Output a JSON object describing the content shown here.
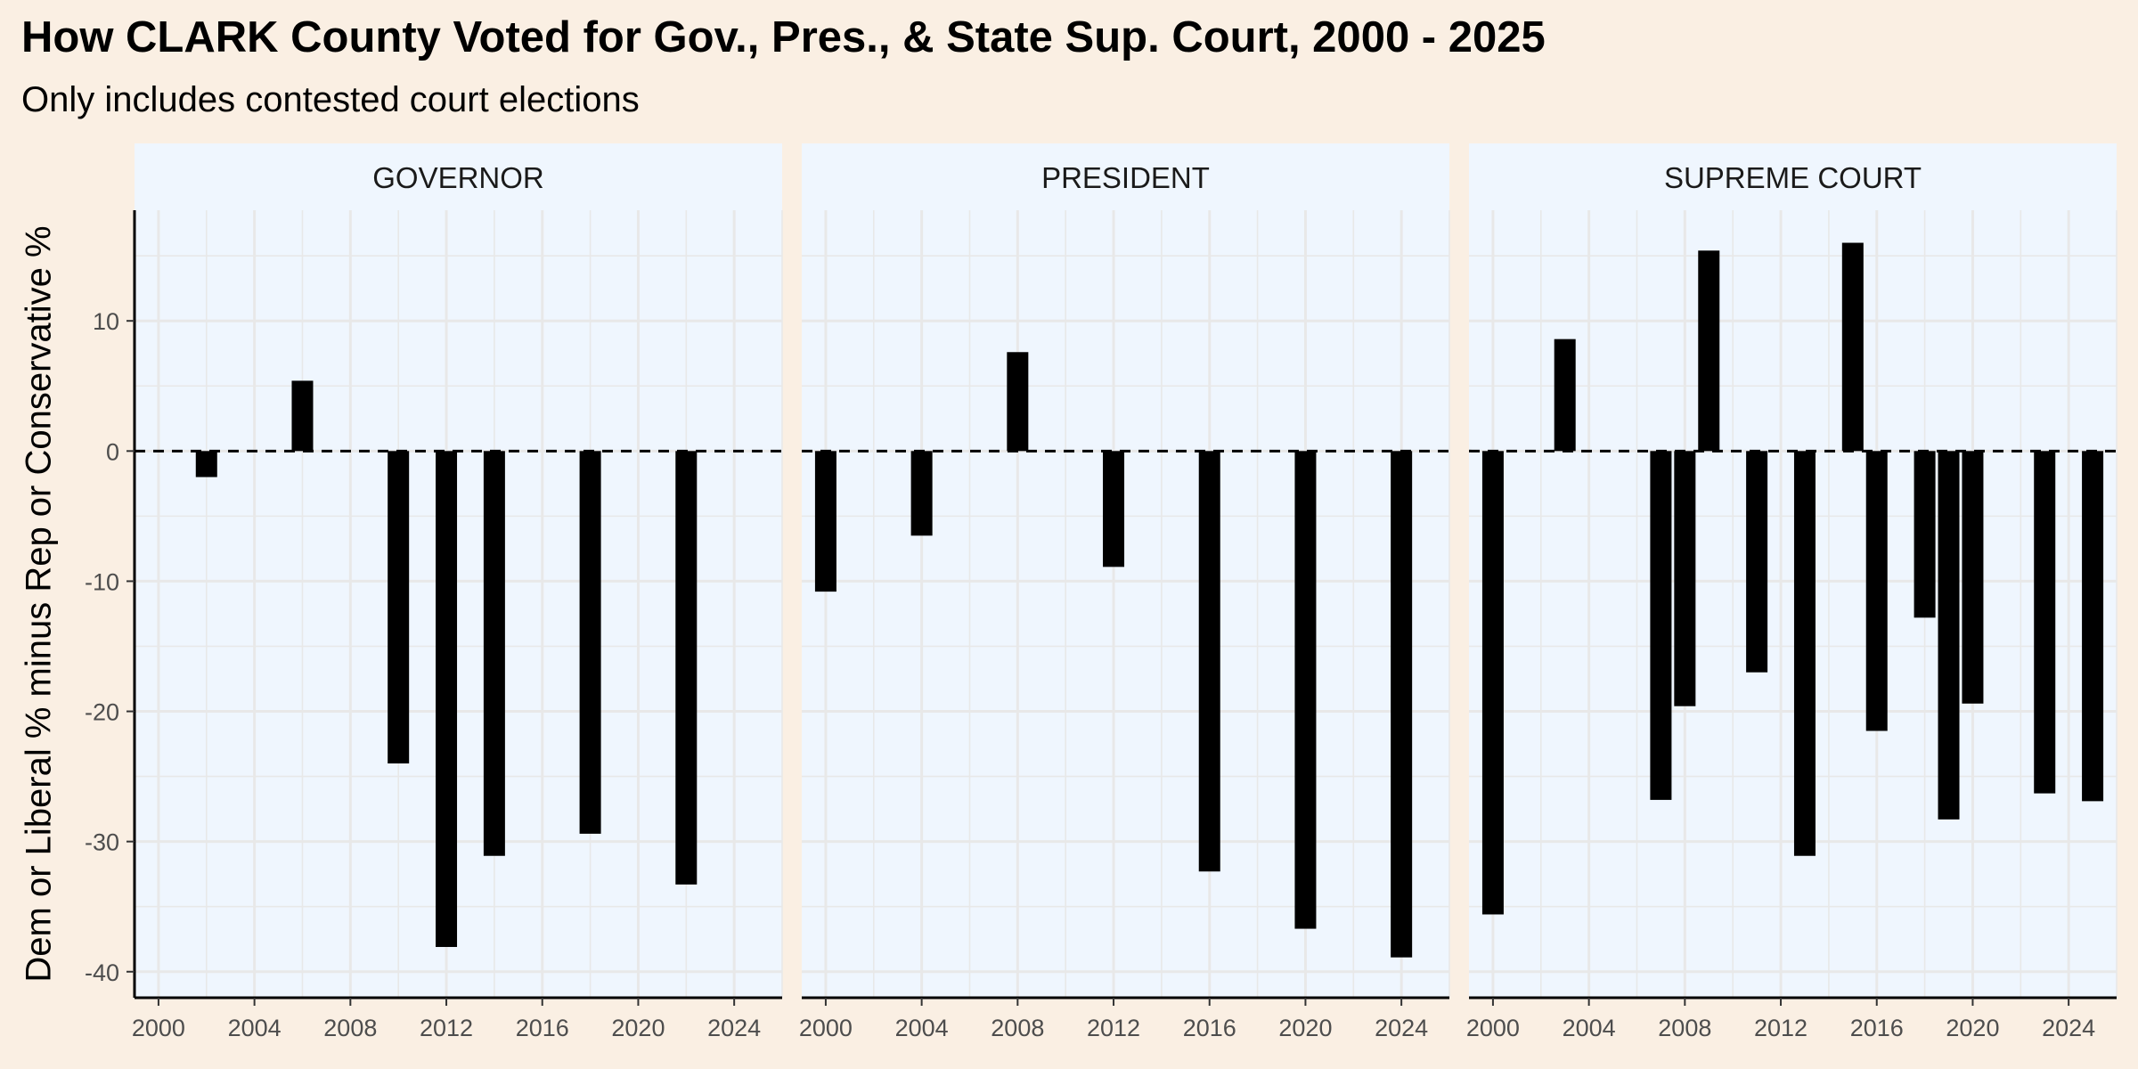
{
  "title": "How CLARK County Voted for Gov., Pres., & State Sup. Court, 2000 - 2025",
  "subtitle": "Only includes contested court elections",
  "chart_data": {
    "type": "bar",
    "ylabel": "Dem or Liberal % minus Rep or Conservative %",
    "xlabel": "",
    "xlim": [
      1999,
      2026
    ],
    "ylim": [
      -42,
      18.5
    ],
    "x_ticks": [
      2000,
      2004,
      2008,
      2012,
      2016,
      2020,
      2024
    ],
    "y_ticks": [
      -40,
      -30,
      -20,
      -10,
      0,
      10
    ],
    "reference_line": {
      "y": 0,
      "style": "dashed"
    },
    "grid": true,
    "bar_color": "#000000",
    "panel_background": "#eff6fe",
    "facets": [
      {
        "label": "GOVERNOR",
        "x": [
          2002,
          2006,
          2010,
          2012,
          2014,
          2018,
          2022
        ],
        "values": [
          -2.0,
          5.4,
          -24.0,
          -38.1,
          -31.1,
          -29.4,
          -33.3
        ]
      },
      {
        "label": "PRESIDENT",
        "x": [
          2000,
          2004,
          2008,
          2012,
          2016,
          2020,
          2024
        ],
        "values": [
          -10.8,
          -6.5,
          7.6,
          -8.9,
          -32.3,
          -36.7,
          -38.9
        ]
      },
      {
        "label": "SUPREME COURT",
        "x": [
          2000,
          2003,
          2007,
          2008,
          2009,
          2011,
          2013,
          2015,
          2016,
          2018,
          2019,
          2020,
          2023,
          2025
        ],
        "values": [
          -35.6,
          8.6,
          -26.8,
          -19.6,
          15.4,
          -17.0,
          -31.1,
          16.0,
          -21.5,
          -12.8,
          -28.3,
          -19.4,
          -26.3,
          -26.9
        ]
      }
    ]
  }
}
